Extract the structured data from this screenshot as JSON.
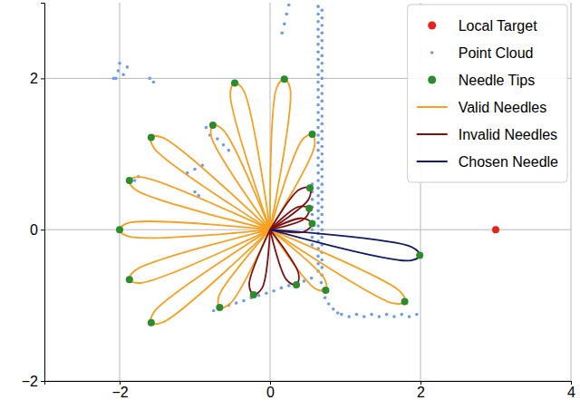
{
  "chart_data": {
    "type": "scatter",
    "xlim": [
      -3,
      4
    ],
    "ylim": [
      -2,
      3
    ],
    "xticks": [
      {
        "value": -2,
        "label": "−2"
      },
      0,
      2,
      4
    ],
    "yticks": [
      {
        "value": -2,
        "label": "−2"
      },
      0,
      2
    ],
    "grid": true,
    "legend": "upper right",
    "series": [
      {
        "name": "Local Target",
        "type": "scatter",
        "color": "#e8211b",
        "marker": "circle",
        "x": [
          3.0
        ],
        "y": [
          0.0
        ]
      },
      {
        "name": "Point Cloud",
        "type": "scatter",
        "color": "#6f9ce8",
        "marker": "point",
        "x": [
          0.64,
          0.64,
          0.64,
          0.64,
          0.64,
          0.64,
          0.64,
          0.64,
          0.64,
          0.64,
          0.64,
          0.64,
          0.64,
          0.64,
          0.64,
          0.64,
          0.64,
          0.64,
          0.64,
          0.64,
          0.64,
          0.64,
          0.64,
          0.64,
          0.64,
          0.64,
          0.64,
          0.64,
          0.64,
          0.64,
          0.64,
          0.64,
          0.64,
          0.64,
          0.64,
          0.64,
          0.69,
          0.69,
          0.69,
          0.69,
          0.69,
          0.69,
          0.69,
          0.69,
          0.69,
          0.69,
          0.69,
          0.69,
          0.69,
          0.69,
          0.69,
          0.69,
          0.69,
          0.69,
          0.69,
          0.69,
          0.69,
          0.69,
          0.69,
          0.69,
          0.69,
          0.69,
          0.69,
          0.69,
          0.69,
          0.69,
          0.69,
          0.69,
          0.69,
          0.69,
          0.69,
          0.69,
          0.56,
          0.56,
          0.56,
          0.56,
          0.56,
          0.56,
          0.56,
          0.56,
          0.56,
          0.68,
          0.7,
          0.73,
          0.78,
          0.84,
          0.9,
          0.95,
          1.05,
          1.15,
          1.25,
          1.35,
          1.45,
          1.55,
          1.65,
          1.75,
          1.85,
          1.95,
          -0.75,
          -0.65,
          -0.55,
          -0.45,
          -0.35,
          -0.25,
          -0.15,
          -0.05,
          0.05,
          0.15,
          0.25,
          0.35,
          0.45,
          0.55,
          0.25,
          0.22,
          0.19,
          0.16,
          -0.85,
          -0.8,
          -0.7,
          -0.62,
          -0.55,
          -0.9,
          -1.0,
          -1.1,
          -1.75,
          -1.8,
          -1.0,
          -0.95,
          -2.05,
          -2.02,
          -2.0,
          -1.95,
          -1.9,
          -1.6,
          -1.55,
          -2.08
        ],
        "y": [
          2.95,
          2.85,
          2.75,
          2.65,
          2.55,
          2.45,
          2.35,
          2.25,
          2.15,
          2.05,
          1.95,
          1.85,
          1.75,
          1.65,
          1.55,
          1.45,
          1.35,
          1.25,
          1.15,
          1.05,
          0.95,
          0.85,
          0.75,
          0.65,
          0.55,
          0.45,
          0.35,
          0.25,
          0.15,
          0.05,
          -0.05,
          -0.15,
          -0.25,
          -0.35,
          -0.45,
          -0.55,
          2.9,
          2.8,
          2.7,
          2.6,
          2.5,
          2.4,
          2.3,
          2.2,
          2.1,
          2.0,
          1.9,
          1.8,
          1.7,
          1.6,
          1.5,
          1.4,
          1.3,
          1.2,
          1.1,
          1.0,
          0.9,
          0.8,
          0.7,
          0.6,
          0.5,
          0.4,
          0.3,
          0.2,
          0.1,
          0.0,
          -0.1,
          -0.2,
          -0.3,
          -0.4,
          -0.5,
          -0.6,
          0.6,
          0.5,
          0.4,
          0.3,
          0.2,
          0.1,
          0.0,
          -0.1,
          -0.2,
          -0.7,
          -0.8,
          -0.9,
          -0.98,
          -1.05,
          -1.1,
          -1.12,
          -1.15,
          -1.12,
          -1.15,
          -1.12,
          -1.15,
          -1.12,
          -1.15,
          -1.12,
          -1.15,
          -1.12,
          -1.07,
          -1.04,
          -1.0,
          -0.97,
          -0.94,
          -0.9,
          -0.87,
          -0.84,
          -0.81,
          -0.77,
          -0.74,
          -0.71,
          -0.68,
          -0.64,
          2.97,
          2.85,
          2.72,
          2.6,
          1.35,
          1.25,
          1.2,
          1.12,
          1.05,
          0.85,
          0.8,
          0.75,
          0.7,
          0.65,
          0.5,
          0.45,
          2.0,
          2.1,
          2.2,
          2.05,
          2.15,
          2.0,
          1.95,
          2.0
        ]
      },
      {
        "name": "Needle Tips",
        "type": "scatter",
        "color": "#2a8c2a",
        "marker": "circle",
        "x": [
          -0.47,
          0.19,
          -1.58,
          -0.76,
          0.56,
          -1.87,
          -2.0,
          -1.87,
          -1.58,
          -0.67,
          0.74,
          1.79,
          0.53,
          0.52,
          0.56,
          -0.22,
          0.35,
          1.99
        ],
        "y": [
          1.94,
          1.99,
          1.22,
          1.38,
          1.26,
          0.65,
          0.0,
          -0.66,
          -1.23,
          -1.03,
          -0.8,
          -0.95,
          0.55,
          0.28,
          0.08,
          -0.86,
          -0.73,
          -0.34
        ]
      },
      {
        "name": "Valid Needles",
        "type": "line",
        "color": "#f7a021",
        "line_style": "solid",
        "needles": [
          {
            "x": [
              0,
              -0.529,
              -0.47,
              -0.354,
              0
            ],
            "y": [
              0,
              1.802,
              1.94,
              1.844,
              0
            ]
          },
          {
            "x": [
              0,
              0.089,
              0.19,
              0.268,
              0
            ],
            "y": [
              0,
              1.879,
              1.99,
              1.861,
              0
            ]
          },
          {
            "x": [
              0,
              -1.54,
              -1.58,
              -1.43,
              0
            ],
            "y": [
              0,
              1.076,
              1.22,
              1.218,
              0
            ]
          },
          {
            "x": [
              0,
              -0.781,
              -0.76,
              -0.623,
              0
            ],
            "y": [
              0,
              1.232,
              1.38,
              1.318,
              0
            ]
          },
          {
            "x": [
              0,
              0.429,
              0.56,
              0.593,
              0
            ],
            "y": [
              0,
              1.187,
              1.26,
              1.114,
              0
            ]
          },
          {
            "x": [
              0,
              -1.786,
              -1.87,
              -1.727,
              0
            ],
            "y": [
              0,
              0.526,
              0.65,
              0.696,
              0
            ]
          },
          {
            "x": [
              0,
              -1.88,
              -2.0,
              -1.88,
              0
            ],
            "y": [
              0,
              -0.09,
              0.0,
              0.09,
              0
            ]
          },
          {
            "x": [
              0,
              -1.727,
              -1.87,
              -1.787,
              0
            ],
            "y": [
              0,
              -0.705,
              -0.66,
              -0.535,
              0
            ]
          },
          {
            "x": [
              0,
              -1.43,
              -1.58,
              -1.54,
              0
            ],
            "y": [
              0,
              -1.227,
              -1.23,
              -1.085,
              0
            ]
          },
          {
            "x": [
              0,
              -0.53,
              -0.67,
              -0.68,
              0
            ],
            "y": [
              0,
              -0.978,
              -1.03,
              -0.88,
              0
            ]
          },
          {
            "x": [
              0,
              0.724,
              0.74,
              0.592,
              0
            ],
            "y": [
              0,
              -0.651,
              -0.8,
              -0.773,
              0
            ]
          },
          {
            "x": [
              0,
              1.726,
              1.79,
              1.642,
              0
            ],
            "y": [
              0,
              -0.814,
              -0.95,
              -0.974,
              0
            ]
          }
        ]
      },
      {
        "name": "Invalid Needles",
        "type": "line",
        "color": "#7f1010",
        "line_style": "solid",
        "needles": [
          {
            "x": [
              0,
              0.382,
              0.53,
              0.512,
              0
            ],
            "y": [
              0,
              0.526,
              0.55,
              0.401,
              0
            ]
          },
          {
            "x": [
              0,
              0.371,
              0.52,
              0.457,
              0
            ],
            "y": [
              0,
              0.302,
              0.28,
              0.144,
              0
            ]
          },
          {
            "x": [
              0,
              0.428,
              0.56,
              0.454,
              0
            ],
            "y": [
              0,
              0.152,
              0.08,
              -0.026,
              0
            ]
          },
          {
            "x": [
              0,
              -0.103,
              -0.22,
              -0.277,
              0
            ],
            "y": [
              0,
              -0.766,
              -0.86,
              -0.722,
              0
            ]
          },
          {
            "x": [
              0,
              0.379,
              0.35,
              0.217,
              0
            ],
            "y": [
              0,
              -0.583,
              -0.73,
              -0.661,
              0
            ]
          }
        ]
      },
      {
        "name": "Chosen Needle",
        "type": "line",
        "color": "#101a66",
        "line_style": "solid",
        "needles": [
          {
            "x": [
              0,
              1.887,
              1.99,
              1.857,
              0
            ],
            "y": [
              0,
              -0.231,
              -0.34,
              -0.409,
              0
            ]
          }
        ]
      }
    ]
  }
}
